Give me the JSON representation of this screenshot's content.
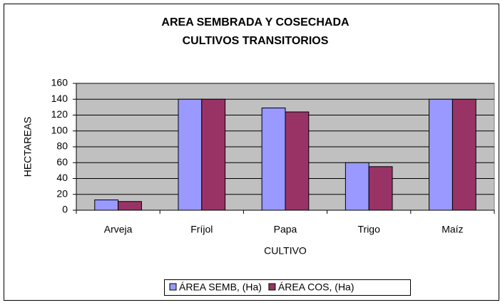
{
  "chart_data": {
    "type": "bar",
    "title": "AREA SEMBRADA Y COSECHADA",
    "subtitle": "CULTIVOS TRANSITORIOS",
    "x_label": "CULTIVO",
    "y_label": "HECTAREAS",
    "categories": [
      "Arveja",
      "Fríjol",
      "Papa",
      "Trigo",
      "Maíz"
    ],
    "series": [
      {
        "name": "ÁREA SEMB, (Ha)",
        "color": "#9999ff",
        "values": [
          13,
          140,
          129,
          60,
          140
        ]
      },
      {
        "name": "ÁREA COS, (Ha)",
        "color": "#993366",
        "values": [
          11,
          140,
          124,
          55,
          140
        ]
      }
    ],
    "ylim": [
      0,
      160
    ],
    "yticks": [
      0,
      20,
      40,
      60,
      80,
      100,
      120,
      140,
      160
    ],
    "grid": true,
    "legend": "bottom",
    "plot_background": "#c0c0c0"
  }
}
